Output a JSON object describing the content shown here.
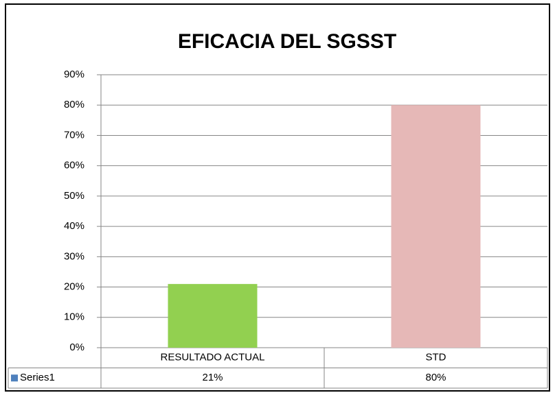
{
  "chart_data": {
    "type": "bar",
    "title": "EFICACIA DEL SGSST",
    "categories": [
      "RESULTADO ACTUAL",
      "STD"
    ],
    "series": [
      {
        "name": "Series1",
        "color": "#4f81bd",
        "point_colors": [
          "#92d050",
          "#e6b8b7"
        ],
        "values": [
          21,
          80
        ],
        "value_labels": [
          "21%",
          "80%"
        ]
      }
    ],
    "ylim": [
      0,
      90
    ],
    "yticks": [
      {
        "value": 0,
        "label": "0%"
      },
      {
        "value": 10,
        "label": "10%"
      },
      {
        "value": 20,
        "label": "20%"
      },
      {
        "value": 30,
        "label": "30%"
      },
      {
        "value": 40,
        "label": "40%"
      },
      {
        "value": 50,
        "label": "50%"
      },
      {
        "value": 60,
        "label": "60%"
      },
      {
        "value": 70,
        "label": "70%"
      },
      {
        "value": 80,
        "label": "80%"
      },
      {
        "value": 90,
        "label": "90%"
      }
    ],
    "grid": true,
    "data_table": true
  }
}
